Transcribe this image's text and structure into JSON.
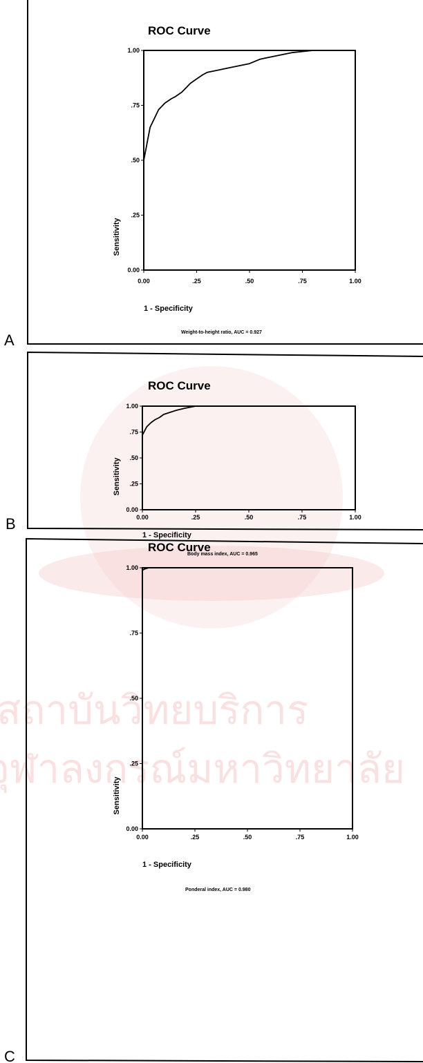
{
  "watermark": {
    "line1": "สถาบันวิทยบริการ",
    "line2": "จุฬาลงกรณ์มหาวิทยาลัย",
    "color": "#f2b8b8"
  },
  "chart_data": [
    {
      "type": "line",
      "panel": "A",
      "title": "ROC Curve",
      "xlabel": "1 - Specificity",
      "ylabel": "Sensitivity",
      "caption": "Weight-to-height ratio, AUC = 0.927",
      "xlim": [
        0,
        1
      ],
      "ylim": [
        0,
        1
      ],
      "x_ticks": [
        "0.00",
        ".25",
        ".50",
        ".75",
        "1.00"
      ],
      "y_ticks": [
        "0.00",
        ".25",
        ".50",
        ".75",
        "1.00"
      ],
      "grid": false,
      "series": [
        {
          "x": [
            0.0,
            0.0,
            0.01,
            0.02,
            0.03,
            0.05,
            0.07,
            0.1,
            0.13,
            0.15,
            0.18,
            0.2,
            0.22,
            0.25,
            0.28,
            0.3,
            0.35,
            0.4,
            0.45,
            0.5,
            0.55,
            0.6,
            0.65,
            0.7,
            0.75,
            0.8,
            0.9,
            1.0
          ],
          "y": [
            0.0,
            0.5,
            0.55,
            0.6,
            0.65,
            0.69,
            0.73,
            0.76,
            0.78,
            0.79,
            0.81,
            0.83,
            0.85,
            0.87,
            0.89,
            0.9,
            0.91,
            0.92,
            0.93,
            0.94,
            0.96,
            0.97,
            0.98,
            0.99,
            0.995,
            1.0,
            1.0,
            1.0
          ]
        }
      ]
    },
    {
      "type": "line",
      "panel": "B",
      "title": "ROC Curve",
      "xlabel": "1 - Specificity",
      "ylabel": "Sensitivity",
      "caption": "Body mass index, AUC = 0.965",
      "xlim": [
        0,
        1
      ],
      "ylim": [
        0,
        1
      ],
      "x_ticks": [
        "0.00",
        ".25",
        ".50",
        ".75",
        "1.00"
      ],
      "y_ticks": [
        "0.00",
        ".25",
        ".50",
        ".75",
        "1.00"
      ],
      "grid": false,
      "series": [
        {
          "x": [
            0.0,
            0.0,
            0.01,
            0.02,
            0.04,
            0.06,
            0.08,
            0.1,
            0.13,
            0.16,
            0.2,
            0.25,
            0.3,
            1.0
          ],
          "y": [
            0.0,
            0.72,
            0.76,
            0.8,
            0.84,
            0.87,
            0.89,
            0.92,
            0.94,
            0.96,
            0.98,
            1.0,
            1.0,
            1.0
          ]
        }
      ]
    },
    {
      "type": "line",
      "panel": "C",
      "title": "ROC Curve",
      "xlabel": "1 - Specificity",
      "ylabel": "Sensitivity",
      "caption": "Ponderal index, AUC = 0.980",
      "xlim": [
        0,
        1
      ],
      "ylim": [
        0,
        1
      ],
      "x_ticks": [
        "0.00",
        ".25",
        ".50",
        ".75",
        "1.00"
      ],
      "y_ticks": [
        "0.00",
        ".25",
        ".50",
        ".75",
        "1.00"
      ],
      "grid": false,
      "series": [
        {
          "x": [
            0.0,
            0.0,
            0.01,
            0.03,
            0.06,
            0.1,
            1.0
          ],
          "y": [
            0.0,
            0.99,
            0.995,
            1.0,
            1.0,
            1.0,
            1.0
          ]
        }
      ]
    }
  ]
}
